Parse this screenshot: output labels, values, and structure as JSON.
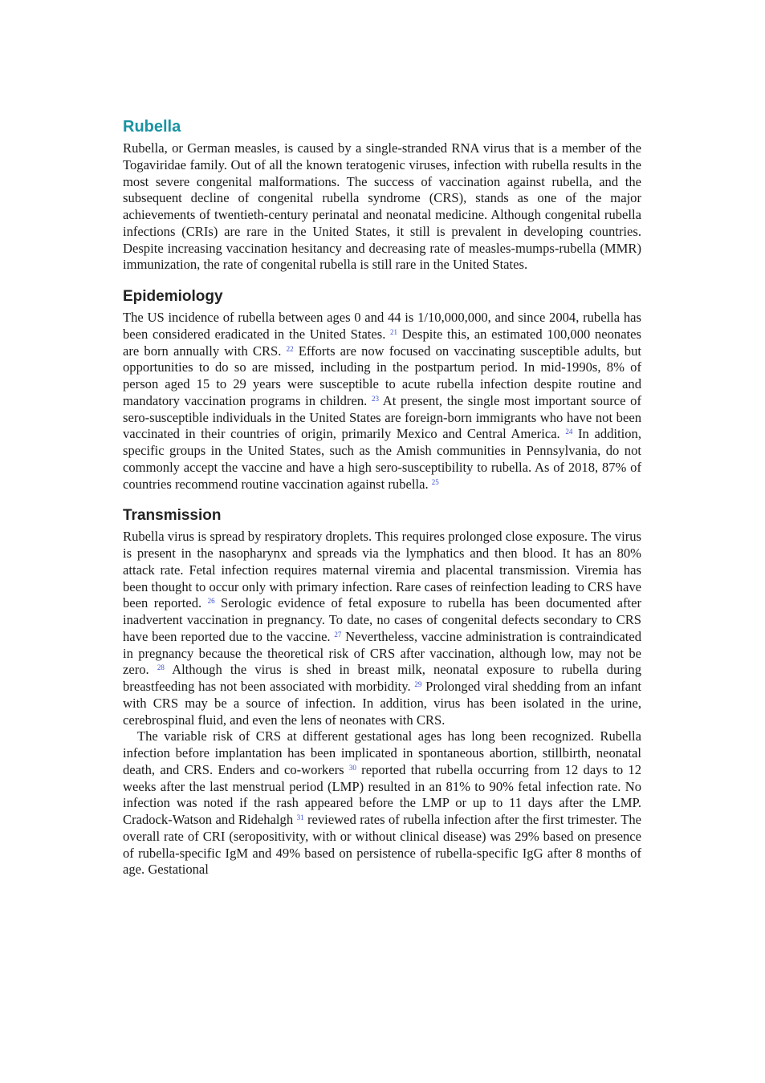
{
  "title": "Rubella",
  "sections": [
    {
      "paragraphs": [
        [
          {
            "text": "Rubella, or German measles, is caused by a single-stranded RNA virus that is a member of the Togaviridae family. Out of all the known teratogenic viruses, infection with rubella results in the most severe congenital malformations. The success of vaccination against rubella, and the subsequent decline of congenital rubella syndrome (CRS), stands as one of the major achievements of twentieth-century perinatal and neonatal medicine. Although congenital rubella infections (CRIs) are rare in the United States, it still is prevalent in developing countries. Despite increasing vaccination hesitancy and decreasing rate of measles-mumps-rubella (MMR) immunization, the rate of congenital rubella is still rare in the United States."
          }
        ]
      ]
    },
    {
      "heading": "Epidemiology",
      "paragraphs": [
        [
          {
            "text": "The US incidence of rubella between ages 0 and 44 is 1/10,000,000, and since 2004, rubella has been considered eradicated in the United States. "
          },
          {
            "ref": "21"
          },
          {
            "text": " Despite this, an estimated 100,000 neonates are born annually with CRS. "
          },
          {
            "ref": "22"
          },
          {
            "text": " Efforts are now focused on vaccinating susceptible adults, but opportunities to do so are missed, including in the postpartum period. In mid-1990s, 8% of person aged 15 to 29 years were susceptible to acute rubella infection despite routine and mandatory vaccination programs in children. "
          },
          {
            "ref": "23"
          },
          {
            "text": " At present, the single most important source of sero-susceptible individuals in the United States are foreign-born immigrants who have not been vaccinated in their countries of origin, primarily Mexico and Central America. "
          },
          {
            "ref": "24"
          },
          {
            "text": " In addition, specific groups in the United States, such as the Amish communities in Pennsylvania, do not commonly accept the vaccine and have a high sero-susceptibility to rubella. As of 2018, 87% of countries recommend routine vaccination against rubella. "
          },
          {
            "ref": "25"
          }
        ]
      ]
    },
    {
      "heading": "Transmission",
      "paragraphs": [
        [
          {
            "text": "Rubella virus is spread by respiratory droplets. This requires prolonged close exposure. The virus is present in the nasopharynx and spreads via the lymphatics and then blood. It has an 80% attack rate. Fetal infection requires maternal viremia and placental transmission. Viremia has been thought to occur only with primary infection. Rare cases of reinfection leading to CRS have been reported. "
          },
          {
            "ref": "26"
          },
          {
            "text": " Serologic evidence of fetal exposure to rubella has been documented after inadvertent vaccination in pregnancy. To date, no cases of congenital defects secondary to CRS have been reported due to the vaccine. "
          },
          {
            "ref": "27"
          },
          {
            "text": " Nevertheless, vaccine administration is contraindicated in pregnancy because the theoretical risk of CRS after vaccination, although low, may not be zero. "
          },
          {
            "ref": "28"
          },
          {
            "text": " Although the virus is shed in breast milk, neonatal exposure to rubella during breastfeeding has not been associated with morbidity. "
          },
          {
            "ref": "29"
          },
          {
            "text": " Prolonged viral shedding from an infant with CRS may be a source of infection. In addition, virus has been isolated in the urine, cerebrospinal fluid, and even the lens of neonates with CRS."
          }
        ],
        [
          {
            "text": "The variable risk of CRS at different gestational ages has long been recognized. Rubella infection before implantation has been implicated in spontaneous abortion, stillbirth, neonatal death, and CRS. Enders and co-workers "
          },
          {
            "ref": "30"
          },
          {
            "text": " reported that rubella occurring from 12 days to 12 weeks after the last menstrual period (LMP) resulted in an 81% to 90% fetal infection rate. No infection was noted if the rash appeared before the LMP or up to 11 days after the LMP. Cradock-Watson and Ridehalgh "
          },
          {
            "ref": "31"
          },
          {
            "text": " reviewed rates of rubella infection after the first trimester. The overall rate of CRI (seropositivity, with or without clinical disease) was 29% based on presence of rubella-specific IgM and 49% based on persistence of rubella-specific IgG after 8 months of age. Gestational"
          }
        ]
      ]
    }
  ]
}
